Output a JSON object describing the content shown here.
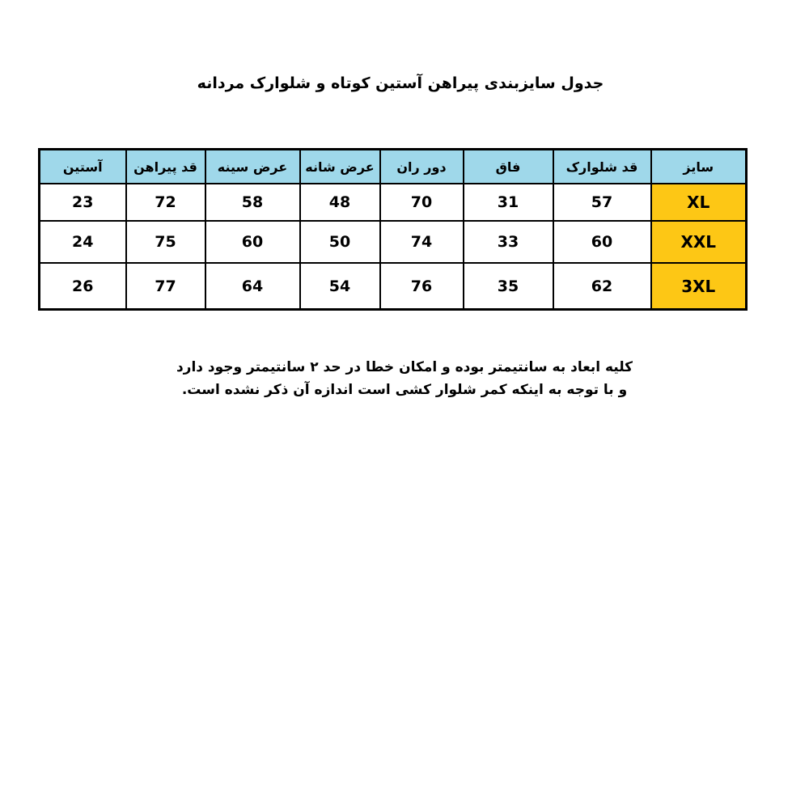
{
  "title": "جدول سایزبندی پیراهن آستین کوتاه و شلوارک مردانه",
  "table": {
    "headers": [
      "سایز",
      "قد شلوارک",
      "فاق",
      "دور ران",
      "عرض شانه",
      "عرض سینه",
      "قد پیراهن",
      "آستین"
    ],
    "rows": [
      [
        "XL",
        "57",
        "31",
        "70",
        "48",
        "58",
        "72",
        "23"
      ],
      [
        "XXL",
        "60",
        "33",
        "74",
        "50",
        "60",
        "75",
        "24"
      ],
      [
        "3XL",
        "62",
        "35",
        "76",
        "54",
        "64",
        "77",
        "26"
      ]
    ]
  },
  "colors": {
    "header_bg": "#9fd8ea",
    "size_bg": "#fdc715"
  },
  "note": {
    "line1": "کلیه ابعاد به سانتیمتر بوده و امکان خطا در حد ۲ سانتیمتر وجود دارد",
    "line2": "و با توجه به اینکه کمر شلوار کشی است اندازه آن ذکر نشده است."
  }
}
